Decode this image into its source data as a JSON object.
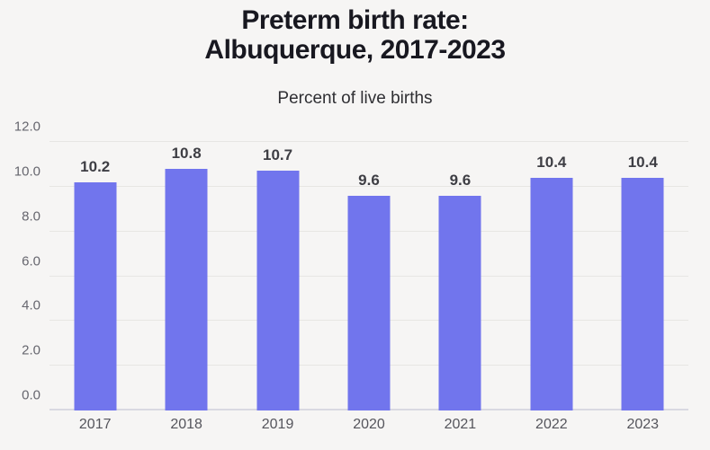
{
  "header": {
    "title": "Preterm birth rate:\nAlbuquerque, 2017-2023",
    "subtitle": "Percent of live births"
  },
  "chart_data": {
    "type": "bar",
    "title": "Preterm birth rate: Albuquerque, 2017-2023",
    "subtitle": "Percent of live births",
    "categories": [
      "2017",
      "2018",
      "2019",
      "2020",
      "2021",
      "2022",
      "2023"
    ],
    "values": [
      10.2,
      10.8,
      10.7,
      9.6,
      9.6,
      10.4,
      10.4
    ],
    "value_labels": [
      "10.2",
      "10.8",
      "10.7",
      "9.6",
      "9.6",
      "10.4",
      "10.4"
    ],
    "xlabel": "",
    "ylabel": "Percent of live births",
    "ylim": [
      0,
      12
    ],
    "yticks": [
      0,
      2,
      4,
      6,
      8,
      10,
      12
    ],
    "ytick_labels": [
      "0.0",
      "2.0",
      "4.0",
      "6.0",
      "8.0",
      "10.0",
      "12.0"
    ],
    "grid": true,
    "legend": false,
    "colors": {
      "bar": "#7175ed",
      "background": "#f6f5f4",
      "gridline": "#e7e6e3",
      "baseline": "#d9d9e1",
      "title": "#181820",
      "subtitle": "#2f2f33",
      "ytick_label": "#66666e",
      "xtick_label": "#55555c",
      "value_label": "#3e3e44"
    }
  }
}
